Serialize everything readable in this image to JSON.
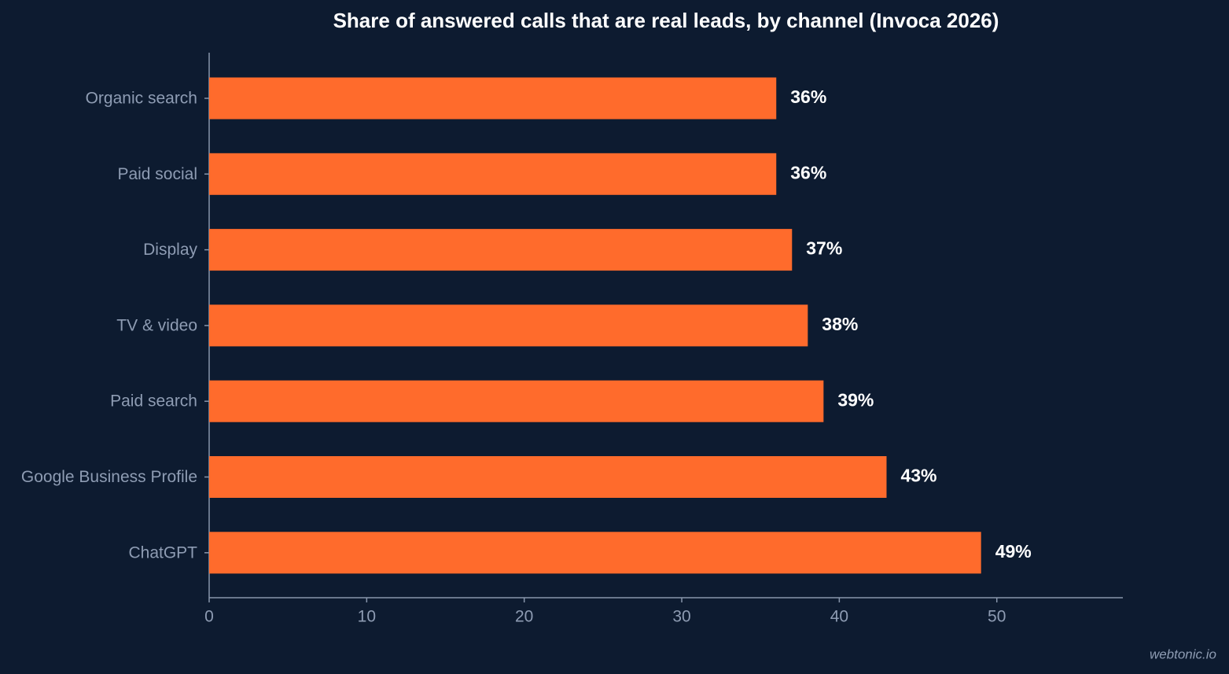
{
  "chart_data": {
    "type": "barh",
    "title": "Share of answered calls that are real leads, by channel (Invoca 2026)",
    "categories": [
      "Organic search",
      "Paid social",
      "Display",
      "TV & video",
      "Paid search",
      "Google Business Profile",
      "ChatGPT"
    ],
    "values": [
      36,
      36,
      37,
      38,
      39,
      43,
      49
    ],
    "value_labels": [
      "36%",
      "36%",
      "37%",
      "38%",
      "39%",
      "43%",
      "49%"
    ],
    "color": "#ff6b2c",
    "xlim": [
      0,
      58
    ],
    "xticks": [
      0,
      10,
      20,
      30,
      40,
      50
    ],
    "grid": false,
    "watermark": "webtonic.io"
  }
}
